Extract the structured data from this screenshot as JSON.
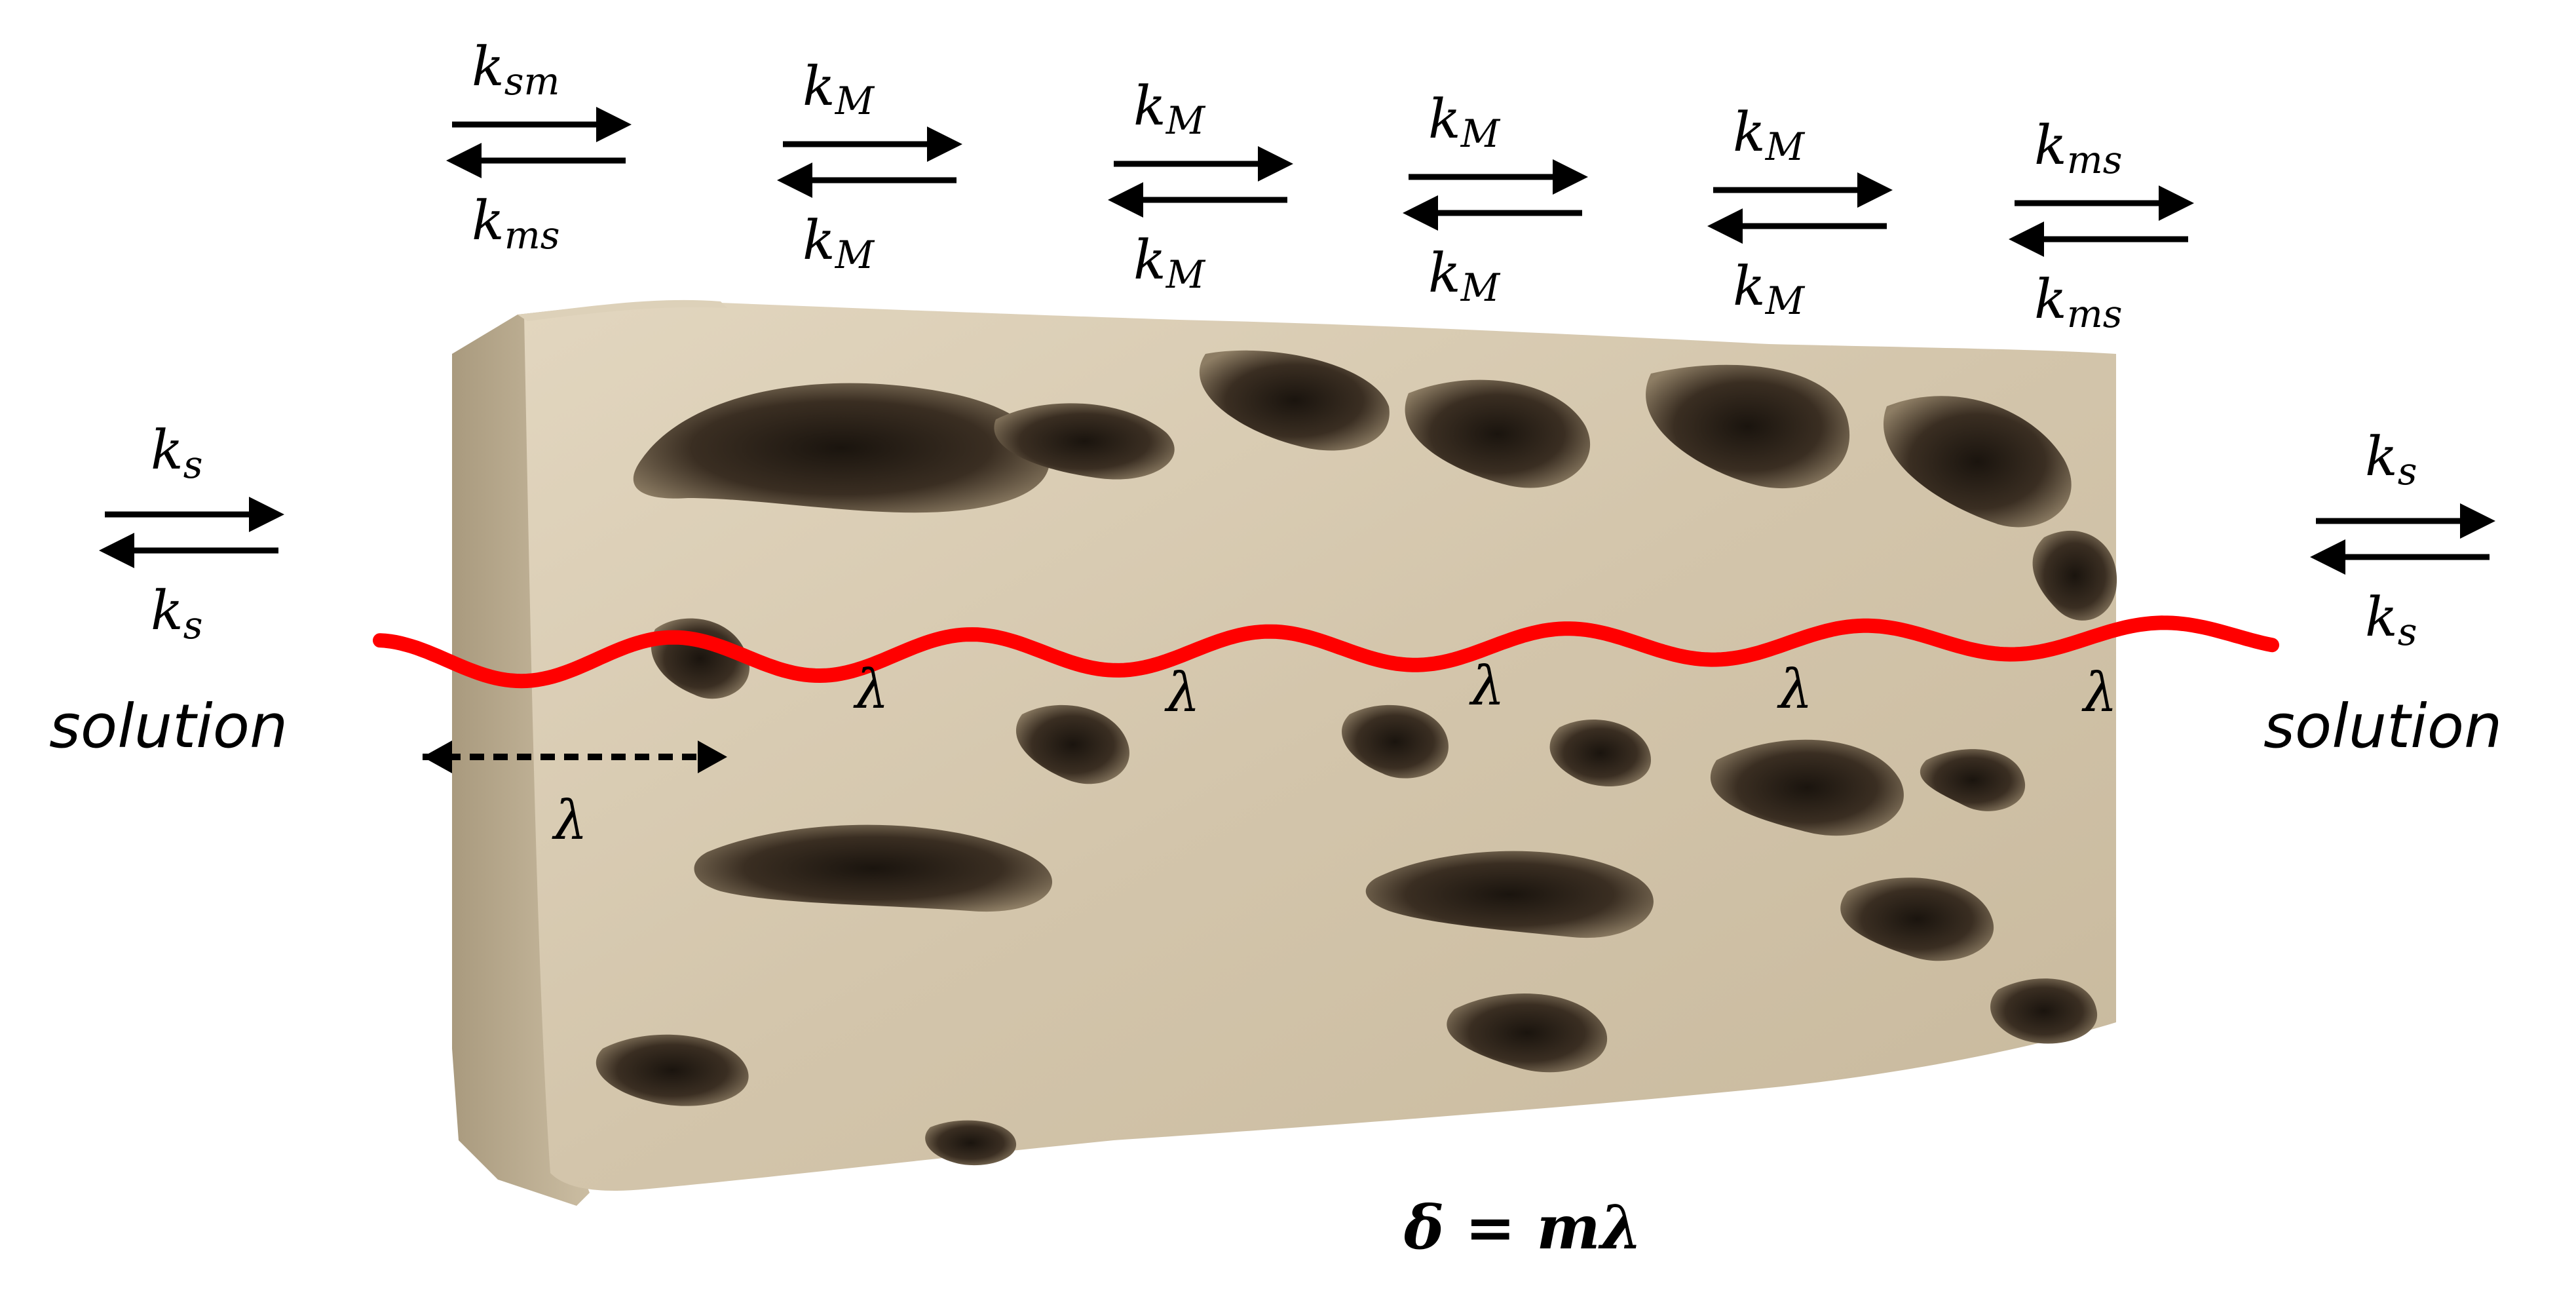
{
  "colors": {
    "block": "#d2c4aa",
    "block_side": "#bdae92",
    "block_top": "#dccfb6",
    "pore": "#2a2118",
    "pore_rim": "#8a7a62",
    "wave": "#ff0000",
    "arrow": "#000000"
  },
  "left": {
    "rate_top": "k",
    "rate_top_sub": "s",
    "rate_bottom": "k",
    "rate_bottom_sub": "s",
    "label": "solution"
  },
  "right": {
    "rate_top": "k",
    "rate_top_sub": "s",
    "rate_bottom": "k",
    "rate_bottom_sub": "s",
    "label": "solution"
  },
  "top_rates": [
    {
      "top": "k",
      "top_sub": "sm",
      "bottom": "k",
      "bottom_sub": "ms"
    },
    {
      "top": "k",
      "top_sub": "M",
      "bottom": "k",
      "bottom_sub": "M"
    },
    {
      "top": "k",
      "top_sub": "M",
      "bottom": "k",
      "bottom_sub": "M"
    },
    {
      "top": "k",
      "top_sub": "M",
      "bottom": "k",
      "bottom_sub": "M"
    },
    {
      "top": "k",
      "top_sub": "M",
      "bottom": "k",
      "bottom_sub": "M"
    },
    {
      "top": "k",
      "top_sub": "ms",
      "bottom": "k",
      "bottom_sub": "ms"
    }
  ],
  "lambda_labels": [
    "λ",
    "λ",
    "λ",
    "λ",
    "λ"
  ],
  "dashed_lambda": "λ",
  "equation": "δ = mλ"
}
